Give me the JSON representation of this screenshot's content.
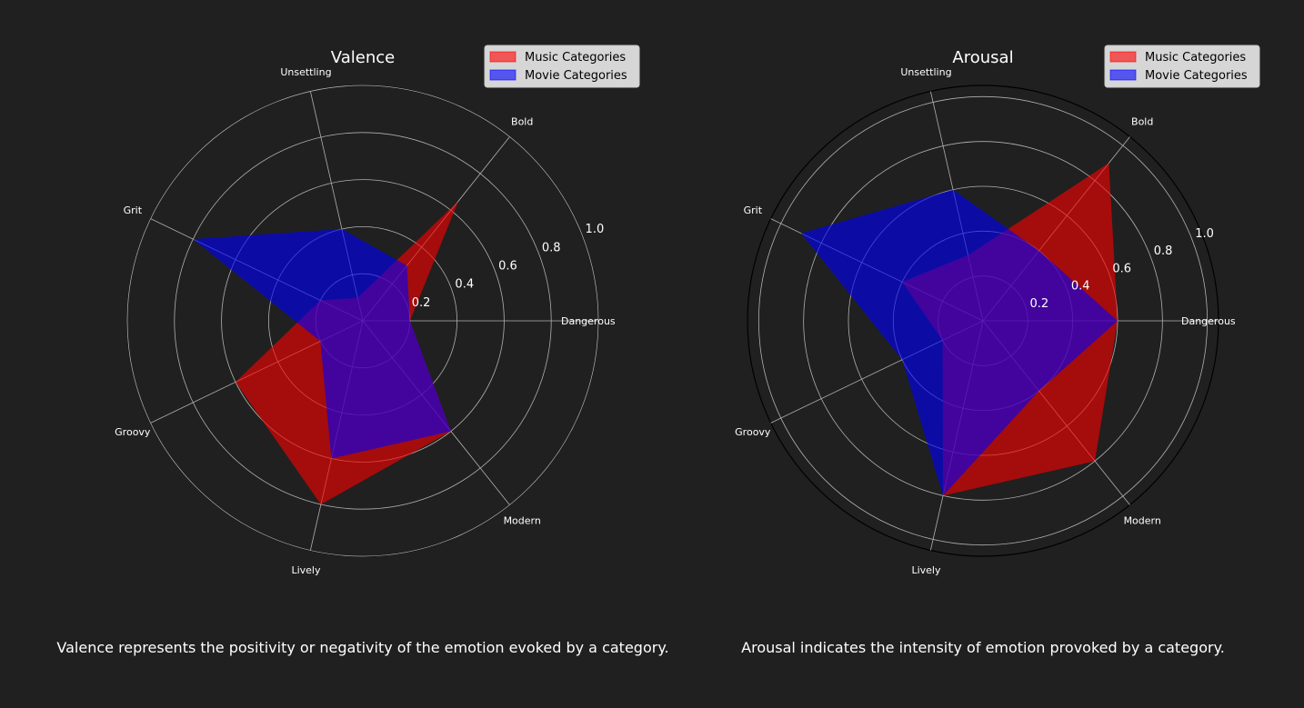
{
  "chart_data": [
    {
      "type": "radar",
      "title": "Valence",
      "categories": [
        "Dangerous",
        "Bold",
        "Unsettling",
        "Grit",
        "Groovy",
        "Lively",
        "Modern"
      ],
      "rticks": [
        "0.2",
        "0.4",
        "0.6",
        "0.8",
        "1.0"
      ],
      "rtick_values": [
        0.2,
        0.4,
        0.6,
        0.8,
        1.0
      ],
      "rlim": [
        0,
        1.0
      ],
      "grid": true,
      "legend_position": "top-right",
      "series": [
        {
          "name": "Music Categories",
          "color": "#ff0000",
          "values": [
            0.2,
            0.65,
            0.1,
            0.2,
            0.6,
            0.8,
            0.6
          ]
        },
        {
          "name": "Movie Categories",
          "color": "#0000ff",
          "values": [
            0.2,
            0.3,
            0.4,
            0.8,
            0.2,
            0.6,
            0.6
          ]
        }
      ],
      "caption": "Valence represents the positivity or negativity of the emotion evoked by a category."
    },
    {
      "type": "radar",
      "title": "Arousal",
      "categories": [
        "Dangerous",
        "Bold",
        "Unsettling",
        "Grit",
        "Groovy",
        "Lively",
        "Modern"
      ],
      "rticks": [
        "0.2",
        "0.4",
        "0.6",
        "0.8",
        "1.0"
      ],
      "rtick_values": [
        0.2,
        0.4,
        0.6,
        0.8,
        1.0
      ],
      "rlim": [
        0,
        1.05
      ],
      "grid": true,
      "legend_position": "top-right",
      "series": [
        {
          "name": "Music Categories",
          "color": "#ff0000",
          "values": [
            0.6,
            0.9,
            0.3,
            0.4,
            0.2,
            0.8,
            0.8
          ]
        },
        {
          "name": "Movie Categories",
          "color": "#0000ff",
          "values": [
            0.6,
            0.4,
            0.6,
            0.9,
            0.4,
            0.8,
            0.4
          ]
        }
      ],
      "caption": "Arousal indicates the intensity of emotion provoked by a category."
    }
  ]
}
